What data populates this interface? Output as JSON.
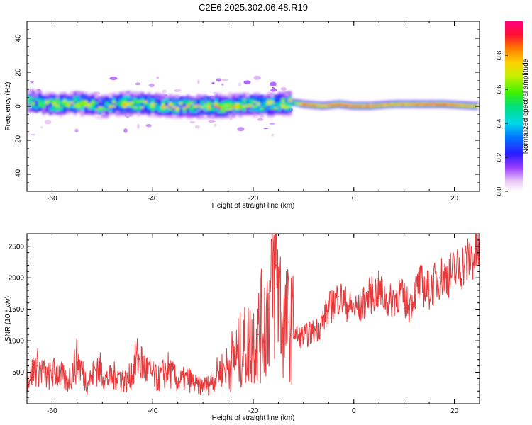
{
  "title": "C2E6.2025.302.06.48.R19",
  "chart_data": [
    {
      "type": "heatmap",
      "xlabel": "Height of straight line (km)",
      "ylabel": "Frequency (Hz)",
      "xlim": [
        -65,
        25
      ],
      "ylim": [
        -50,
        50
      ],
      "xticks": [
        -60,
        -40,
        -20,
        0,
        20
      ],
      "yticks": [
        -40,
        -20,
        0,
        20,
        40
      ],
      "colorbar": {
        "label": "Normalized spectral amplitude",
        "range": [
          0,
          1
        ],
        "ticks": [
          0.0,
          0.2,
          0.4,
          0.6,
          0.8
        ],
        "tick_labels": [
          "0.0",
          "0.2",
          "0.4",
          "0.6",
          "0.8"
        ]
      },
      "ridge": [
        {
          "x": -64,
          "y": 3,
          "amp": 0.45
        },
        {
          "x": -60,
          "y": 1,
          "amp": 0.5
        },
        {
          "x": -55,
          "y": 2,
          "amp": 0.55
        },
        {
          "x": -50,
          "y": 0,
          "amp": 0.45
        },
        {
          "x": -45,
          "y": 2,
          "amp": 0.6
        },
        {
          "x": -40,
          "y": 1,
          "amp": 0.55
        },
        {
          "x": -35,
          "y": 0,
          "amp": 0.55
        },
        {
          "x": -30,
          "y": 0,
          "amp": 0.5
        },
        {
          "x": -26,
          "y": 0,
          "amp": 0.65
        },
        {
          "x": -22,
          "y": 1,
          "amp": 0.5
        },
        {
          "x": -16,
          "y": 1,
          "amp": 0.55
        },
        {
          "x": -12,
          "y": 2,
          "amp": 0.6
        },
        {
          "x": -10,
          "y": 1,
          "amp": 0.95
        },
        {
          "x": -6,
          "y": 0,
          "amp": 0.85
        },
        {
          "x": -3,
          "y": 1,
          "amp": 0.95
        },
        {
          "x": 0,
          "y": 0,
          "amp": 0.9
        },
        {
          "x": 3,
          "y": 0,
          "amp": 0.9
        },
        {
          "x": 8,
          "y": 1,
          "amp": 0.85
        },
        {
          "x": 13,
          "y": 1,
          "amp": 0.9
        },
        {
          "x": 18,
          "y": 1,
          "amp": 0.95
        },
        {
          "x": 24,
          "y": 0,
          "amp": 0.85
        }
      ]
    },
    {
      "type": "line",
      "xlabel": "Height of straight line (km)",
      "ylabel": "SNR (10 * v/v)",
      "xlim": [
        -65,
        25
      ],
      "ylim": [
        0,
        2700
      ],
      "xticks": [
        -60,
        -40,
        -20,
        0,
        20
      ],
      "yticks": [
        500,
        1000,
        1500,
        2000,
        2500
      ],
      "color": "#e8383a",
      "series": [
        {
          "name": "SNR",
          "x": [
            -65,
            -63,
            -61,
            -59,
            -57,
            -55,
            -53,
            -51,
            -49,
            -47,
            -45,
            -43,
            -41,
            -39,
            -37,
            -35,
            -33,
            -31,
            -29,
            -27,
            -25,
            -23,
            -21,
            -19,
            -17,
            -15.5,
            -14,
            -13,
            -11,
            -9,
            -7,
            -5,
            -3,
            -1,
            1,
            3,
            5,
            7,
            9,
            11,
            13,
            15,
            17,
            19,
            21,
            23,
            25
          ],
          "y": [
            400,
            600,
            420,
            520,
            330,
            700,
            320,
            600,
            380,
            460,
            350,
            720,
            520,
            380,
            550,
            350,
            400,
            280,
            300,
            500,
            620,
            800,
            950,
            1100,
            1500,
            2200,
            1200,
            1300,
            1050,
            1100,
            1200,
            1500,
            1700,
            1550,
            1500,
            1700,
            1800,
            1600,
            1750,
            1550,
            1900,
            1800,
            2000,
            2050,
            2150,
            2300,
            2400
          ]
        }
      ]
    }
  ]
}
